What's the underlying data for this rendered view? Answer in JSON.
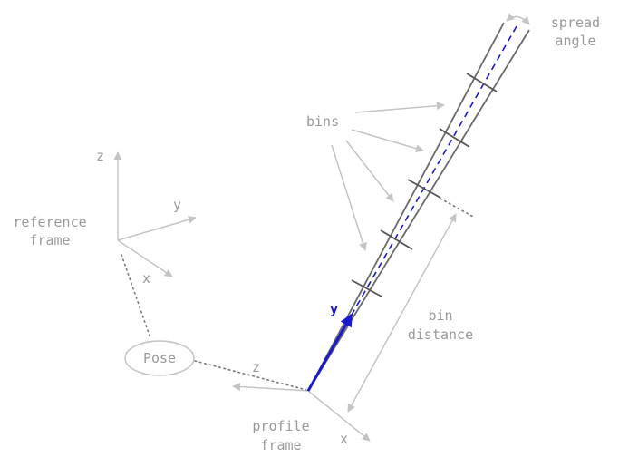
{
  "labels": {
    "spread_angle_line1": "spread",
    "spread_angle_line2": "angle",
    "bins": "bins",
    "ref_z": "z",
    "ref_y": "y",
    "ref_x": "x",
    "reference_frame_line1": "reference",
    "reference_frame_line2": "frame",
    "pose": "Pose",
    "profile_z": "z",
    "profile_y": "y",
    "profile_x": "x",
    "profile_frame_line1": "profile",
    "profile_frame_line2": "frame",
    "bin_distance_line1": "bin",
    "bin_distance_line2": "distance"
  },
  "colors": {
    "annotation_gray": "#c4c4c4",
    "text_gray": "#999999",
    "beam_outline": "#6a6a6a",
    "profile_y_axis": "#1a1acc"
  }
}
